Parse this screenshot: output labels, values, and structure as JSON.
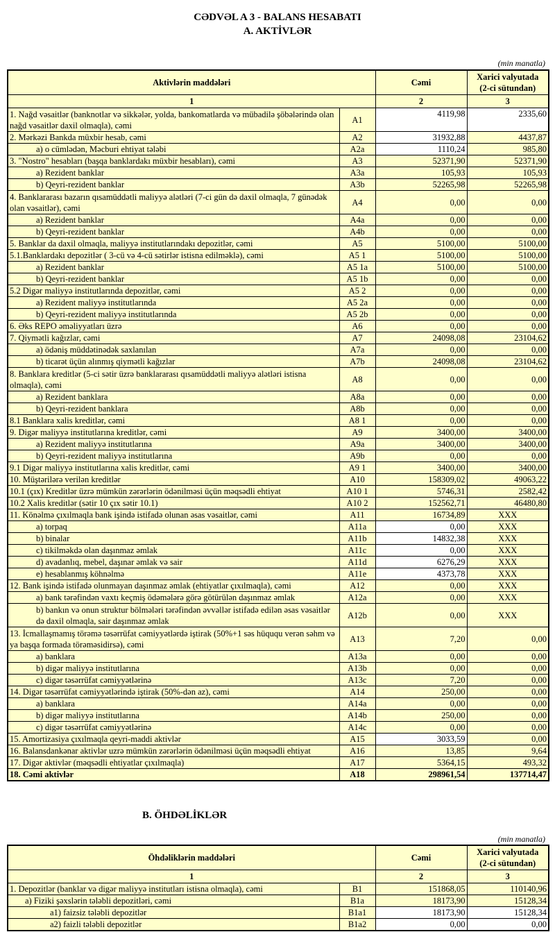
{
  "title_line1": "CƏDVƏL A 3 - BALANS HESABATI",
  "title_line2": "A. AKTİVLƏR",
  "assets": {
    "unit": "(min manatla)",
    "header": {
      "col1": "Aktivlərin   maddələri",
      "col2": "Cəmi",
      "col3_line1": "Xarici valyutada",
      "col3_line2": "(2-ci sütundan)",
      "n1": "1",
      "n2": "2",
      "n3": "3"
    },
    "rows": [
      {
        "label": "1. Nağd vəsaitlər (banknotlar və sikkələr, yolda, bankomatlarda və mübadilə şöbələrində olan nağd vəsaitlər daxil olmaqla), cəmi",
        "code": "A1",
        "c2": "4119,98",
        "c3": "2335,60",
        "level": 0,
        "white": [
          true,
          true
        ]
      },
      {
        "label": "2. Mərkəzi Bankda müxbir hesab, cəmi",
        "code": "A2",
        "c2": "31932,88",
        "c3": "4437,87",
        "level": 0,
        "white": [
          true,
          false
        ]
      },
      {
        "label": "a) o cümlədən, Məcburi ehtiyat tələbi",
        "code": "A2a",
        "c2": "1110,24",
        "c3": "985,80",
        "level": 1,
        "white": [
          true,
          false
        ]
      },
      {
        "label": "3. \"Nostro\" hesabları (başqa banklardakı müxbir hesabları), cəmi",
        "code": "A3",
        "c2": "52371,90",
        "c3": "52371,90",
        "level": 0
      },
      {
        "label": "a) Rezident banklar",
        "code": "A3a",
        "c2": "105,93",
        "c3": "105,93",
        "level": 1
      },
      {
        "label": "b) Qeyri-rezident banklar",
        "code": "A3b",
        "c2": "52265,98",
        "c3": "52265,98",
        "level": 1
      },
      {
        "label": "4. Banklararası bazarın qısamüddətli maliyyə alətləri (7-ci gün də daxil olmaqla, 7 günədək olan vəsaitlər), cəmi",
        "code": "A4",
        "c2": "0,00",
        "c3": "0,00",
        "level": 0
      },
      {
        "label": "a) Rezident banklar",
        "code": "A4a",
        "c2": "0,00",
        "c3": "0,00",
        "level": 1
      },
      {
        "label": "b) Qeyri-rezident banklar",
        "code": "A4b",
        "c2": "0,00",
        "c3": "0,00",
        "level": 1
      },
      {
        "label": "5. Banklar da daxil olmaqla, maliyyə institutlarındakı depozitlər, cəmi",
        "code": "A5",
        "c2": "5100,00",
        "c3": "5100,00",
        "level": 0
      },
      {
        "label": "5.1.Banklardakı depozitlər ( 3-cü və 4-cü sətirlər istisna edilməklə), cəmi",
        "code": "A5  1",
        "c2": "5100,00",
        "c3": "5100,00",
        "level": 0
      },
      {
        "label": "a) Rezident banklar",
        "code": "A5  1a",
        "c2": "5100,00",
        "c3": "5100,00",
        "level": 1
      },
      {
        "label": "b) Qeyri-rezident banklar",
        "code": "A5  1b",
        "c2": "0,00",
        "c3": "0,00",
        "level": 1
      },
      {
        "label": "5.2 Digər maliyyə institutlarında depozitlər, cəmi",
        "code": "A5  2",
        "c2": "0,00",
        "c3": "0,00",
        "level": 0
      },
      {
        "label": "a) Rezident maliyyə institutlarında",
        "code": "A5  2a",
        "c2": "0,00",
        "c3": "0,00",
        "level": 1
      },
      {
        "label": "b) Qeyri-rezident maliyyə institutlarında",
        "code": "A5  2b",
        "c2": "0,00",
        "c3": "0,00",
        "level": 1
      },
      {
        "label": "6. Əks REPO əməliyyatları üzrə",
        "code": "A6",
        "c2": "0,00",
        "c3": "0,00",
        "level": 0
      },
      {
        "label": "7. Qiymətli kağızlar, cəmi",
        "code": "A7",
        "c2": "24098,08",
        "c3": "23104,62",
        "level": 0
      },
      {
        "label": "a) ödəniş müddətinədək saxlanılan",
        "code": "A7a",
        "c2": "0,00",
        "c3": "0,00",
        "level": 1
      },
      {
        "label": "b) ticarət üçün alınmış qiymətli kağızlar",
        "code": "A7b",
        "c2": "24098,08",
        "c3": "23104,62",
        "level": 1
      },
      {
        "label": "8. Banklara kreditlər (5-ci sətir üzrə banklararası qısamüddətli maliyyə alətləri istisna olmaqla), cəmi",
        "code": "A8",
        "c2": "0,00",
        "c3": "0,00",
        "level": 0
      },
      {
        "label": "a) Rezident banklara",
        "code": "A8a",
        "c2": "0,00",
        "c3": "0,00",
        "level": 1
      },
      {
        "label": "b) Qeyri-rezident banklara",
        "code": "A8b",
        "c2": "0,00",
        "c3": "0,00",
        "level": 1
      },
      {
        "label": "8.1 Banklara xalis kreditlər, cəmi",
        "code": "A8  1",
        "c2": "0,00",
        "c3": "0,00",
        "level": 0
      },
      {
        "label": "9. Digər maliyyə institutlarına kreditlər, cəmi",
        "code": "A9",
        "c2": "3400,00",
        "c3": "3400,00",
        "level": 0
      },
      {
        "label": "a) Rezident maliyyə institutlarına",
        "code": "A9a",
        "c2": "3400,00",
        "c3": "3400,00",
        "level": 1
      },
      {
        "label": "b) Qeyri-rezident maliyyə institutlarına",
        "code": "A9b",
        "c2": "0,00",
        "c3": "0,00",
        "level": 1
      },
      {
        "label": "9.1 Digər maliyyə institutlarına xalis kreditlər, cəmi",
        "code": "A9  1",
        "c2": "3400,00",
        "c3": "3400,00",
        "level": 0
      },
      {
        "label": "10. Müştərilərə verilən kreditlər",
        "code": "A10",
        "c2": "158309,02",
        "c3": "49063,22",
        "level": 0
      },
      {
        "label": "10.1 (çıx) Kreditlər üzrə mümkün zərərlərin ödənilməsi üçün məqsədli ehtiyat",
        "code": "A10  1",
        "c2": "5746,31",
        "c3": "2582,42",
        "level": 0
      },
      {
        "label": "10.2 Xalis kreditlər (sətir 10 çıx sətir 10.1)",
        "code": "A10  2",
        "c2": "152562,71",
        "c3": "46480,80",
        "level": 0
      },
      {
        "label": "11. Könəlmə çıxılmaqla bank işində istifadə olunan əsas vəsaitlər, cəmi",
        "code": "A11",
        "c2": "16734,89",
        "c3": "XXX",
        "level": 0
      },
      {
        "label": "a) torpaq",
        "code": "A11a",
        "c2": "0,00",
        "c3": "XXX",
        "level": 1,
        "white": [
          true,
          false
        ]
      },
      {
        "label": "b) binalar",
        "code": "A11b",
        "c2": "14832,38",
        "c3": "XXX",
        "level": 1,
        "white": [
          true,
          false
        ]
      },
      {
        "label": "c) tikilməkdə olan daşınmaz əmlak",
        "code": "A11c",
        "c2": "0,00",
        "c3": "XXX",
        "level": 1,
        "white": [
          true,
          false
        ]
      },
      {
        "label": "d) avadanlıq, mebel, daşınar əmlak və sair",
        "code": "A11d",
        "c2": "6276,29",
        "c3": "XXX",
        "level": 1,
        "white": [
          true,
          false
        ]
      },
      {
        "label": "e) hesablanmış köhnəlmə",
        "code": "A11e",
        "c2": "4373,78",
        "c3": "XXX",
        "level": 1,
        "white": [
          true,
          false
        ]
      },
      {
        "label": "12. Bank işində istifadə olunmayan daşınmaz əmlak (ehtiyatlar çıxılmaqla), cəmi",
        "code": "A12",
        "c2": "0,00",
        "c3": "XXX",
        "level": 0
      },
      {
        "label": "a) bank tərəfindən vaxtı keçmiş ödəmələrə görə götürülən daşınmaz əmlak",
        "code": "A12a",
        "c2": "0,00",
        "c3": "XXX",
        "level": 1
      },
      {
        "label": "b) bankın və onun struktur bölmələri tərəfindən əvvəllər istifadə edilən əsas vəsaitlər də daxil olmaqla, sair daşınmaz əmlak",
        "code": "A12b",
        "c2": "0,00",
        "c3": "XXX",
        "level": 1
      },
      {
        "label": "13. İcmallaşmamış törəmə təsərrüfat cəmiyyətlərdə iştirak (50%+1 səs hüququ verən səhm və ya başqa formada törəməsidirsə), cəmi",
        "code": "A13",
        "c2": "7,20",
        "c3": "0,00",
        "level": 0
      },
      {
        "label": "a) banklara",
        "code": "A13a",
        "c2": "0,00",
        "c3": "0,00",
        "level": 1
      },
      {
        "label": "b) digər maliyyə institutlarına",
        "code": "A13b",
        "c2": "0,00",
        "c3": "0,00",
        "level": 1
      },
      {
        "label": "c) digər təsərrüfat cəmiyyətlərinə",
        "code": "A13c",
        "c2": "7,20",
        "c3": "0,00",
        "level": 1
      },
      {
        "label": "14. Digər təsərrüfat cəmiyyətlərində iştirak (50%-dən az), cəmi",
        "code": "A14",
        "c2": "250,00",
        "c3": "0,00",
        "level": 0
      },
      {
        "label": "a) banklara",
        "code": "A14a",
        "c2": "0,00",
        "c3": "0,00",
        "level": 1
      },
      {
        "label": "b) digər maliyyə institutlarına",
        "code": "A14b",
        "c2": "250,00",
        "c3": "0,00",
        "level": 1
      },
      {
        "label": "c) digər təsərrüfat cəmiyyətlərinə",
        "code": "A14c",
        "c2": "0,00",
        "c3": "0,00",
        "level": 1
      },
      {
        "label": "15. Amortizasiya çıxılmaqla qeyri-maddi aktivlər",
        "code": "A15",
        "c2": "3033,59",
        "c3": "0,00",
        "level": 0,
        "white": [
          true,
          false
        ]
      },
      {
        "label": "16. Balansdankənar aktivlər uzrə mümkün zərərlərin ödənilməsi üçün məqsədli ehtiyat",
        "code": "A16",
        "c2": "13,85",
        "c3": "9,64",
        "level": 0
      },
      {
        "label": "17. Digər aktivlər (məqsədli ehtiyatlar çıxılmaqla)",
        "code": "A17",
        "c2": "5364,15",
        "c3": "493,32",
        "level": 0
      },
      {
        "label": "18. Cəmi aktivlər",
        "code": "A18",
        "c2": "298961,54",
        "c3": "137714,47",
        "level": 0,
        "bold": true
      }
    ]
  },
  "liabilities_title": "B. ÖHDƏLİKLƏR",
  "liabilities": {
    "unit": "(min manatla)",
    "header": {
      "col1": "Öhdəliklərin maddələri",
      "col2": "Cəmi",
      "col3_line1": "Xarici valyutada",
      "col3_line2": "(2-ci sütundan)",
      "n1": "1",
      "n2": "2",
      "n3": "3"
    },
    "rows": [
      {
        "label": "1. Depozitlər (banklar və digər maliyyə institutları istisna olmaqla), cəmi",
        "code": "B1",
        "c2": "151868,05",
        "c3": "110140,96",
        "level": 0
      },
      {
        "label": "a)  Fiziki şəxslərin tələbli depozitləri, cəmi",
        "code": "B1a",
        "c2": "18173,90",
        "c3": "15128,34",
        "level": 3
      },
      {
        "label": "a1) faizsiz tələbli depozitlər",
        "code": "B1a1",
        "c2": "18173,90",
        "c3": "15128,34",
        "level": 2,
        "white": [
          true,
          true
        ]
      },
      {
        "label": "a2) faizli tələbli depozitlər",
        "code": "B1a2",
        "c2": "0,00",
        "c3": "0,00",
        "level": 2,
        "white": [
          true,
          true
        ]
      }
    ]
  }
}
